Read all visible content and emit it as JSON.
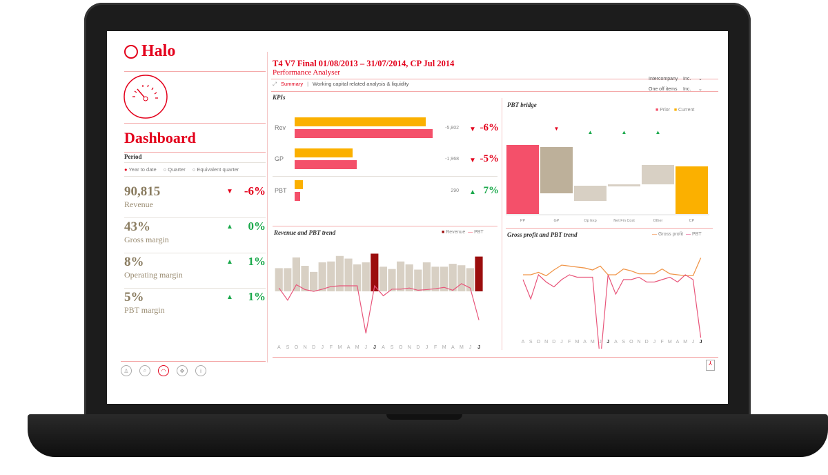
{
  "app": {
    "name": "Halo",
    "section": "Dashboard"
  },
  "header": {
    "title": "T4 V7 Final 01/08/2013 – 31/07/2014, CP Jul 2014",
    "subtitle": "Performance Analyser",
    "tabs": [
      {
        "label": "Summary",
        "active": true
      },
      {
        "label": "Working capital related analysis & liquidity",
        "active": false
      }
    ],
    "filters": [
      {
        "label": "Intercompany",
        "value": "Inc."
      },
      {
        "label": "One off items",
        "value": "Inc."
      }
    ]
  },
  "period": {
    "label": "Period",
    "options": [
      {
        "label": "Year to date",
        "selected": true
      },
      {
        "label": "Quarter",
        "selected": false
      },
      {
        "label": "Equivalent quarter",
        "selected": false
      }
    ]
  },
  "metrics": [
    {
      "value": "90,815",
      "label": "Revenue",
      "change": "-6%",
      "direction": "down"
    },
    {
      "value": "43%",
      "label": "Gross margin",
      "change": "0%",
      "direction": "up"
    },
    {
      "value": "8%",
      "label": "Operating margin",
      "change": "1%",
      "direction": "up"
    },
    {
      "value": "5%",
      "label": "PBT margin",
      "change": "1%",
      "direction": "up"
    }
  ],
  "footer_icons": [
    "user-icon",
    "search-icon",
    "dashboard-icon",
    "navigate-icon",
    "info-icon"
  ],
  "colors": {
    "accent": "#e3001b",
    "current": "#fbb000",
    "prior": "#f4506a",
    "neutral": "#d8d0c4",
    "highlight": "#9b0d0d",
    "up": "#19a84a"
  },
  "kpis": {
    "title": "KPIs",
    "rows": [
      {
        "label": "Rev",
        "current": 95,
        "prior": 100,
        "diff": "-5,802",
        "change": "-6%",
        "direction": "down"
      },
      {
        "label": "GP",
        "current": 42,
        "prior": 45,
        "diff": "-1,968",
        "change": "-5%",
        "direction": "down"
      },
      {
        "label": "PBT",
        "current": 6,
        "prior": 4,
        "diff": "290",
        "change": "7%",
        "direction": "up"
      }
    ]
  },
  "bridge": {
    "title": "PBT bridge",
    "legend": [
      "Prior",
      "Current"
    ],
    "steps": [
      {
        "label": "PP",
        "from": 0,
        "to": 100,
        "kind": "prior",
        "arrow": null
      },
      {
        "label": "GP",
        "from": 30,
        "to": 97,
        "kind": "step",
        "arrow": "down"
      },
      {
        "label": "Op Exp",
        "from": 19,
        "to": 41,
        "kind": "step",
        "arrow": "up"
      },
      {
        "label": "Net Fin Cost",
        "from": 40,
        "to": 43,
        "kind": "step",
        "arrow": "up"
      },
      {
        "label": "Other",
        "from": 43,
        "to": 71,
        "kind": "step",
        "arrow": "up"
      },
      {
        "label": "CP",
        "from": 0,
        "to": 69,
        "kind": "current",
        "arrow": null
      }
    ]
  },
  "months": [
    "A",
    "S",
    "O",
    "N",
    "D",
    "J",
    "F",
    "M",
    "A",
    "M",
    "J",
    "J",
    "A",
    "S",
    "O",
    "N",
    "D",
    "J",
    "F",
    "M",
    "A",
    "M",
    "J",
    "J"
  ],
  "rev_trend": {
    "title": "Revenue and PBT trend",
    "legend": [
      "Revenue",
      "PBT"
    ],
    "revenue": [
      80,
      80,
      117,
      88,
      67,
      100,
      103,
      122,
      113,
      93,
      100,
      130,
      85,
      77,
      103,
      93,
      75,
      100,
      85,
      85,
      95,
      90,
      80,
      120
    ],
    "highlight": [
      11,
      23
    ],
    "pbt": [
      15,
      -40,
      30,
      8,
      0,
      10,
      22,
      25,
      25,
      25,
      -190,
      25,
      -20,
      10,
      10,
      15,
      5,
      8,
      12,
      18,
      5,
      35,
      15,
      -130
    ]
  },
  "gp_trend": {
    "title": "Gross profit and PBT trend",
    "legend": [
      "Gross profit",
      "PBT"
    ],
    "gross_profit": [
      60,
      60,
      65,
      58,
      70,
      80,
      78,
      76,
      74,
      70,
      78,
      60,
      60,
      72,
      68,
      62,
      62,
      62,
      72,
      62,
      60,
      58,
      58,
      95
    ],
    "pbt": [
      50,
      10,
      60,
      45,
      35,
      50,
      60,
      55,
      55,
      55,
      -120,
      60,
      20,
      50,
      50,
      55,
      45,
      45,
      50,
      55,
      45,
      60,
      50,
      -70
    ]
  }
}
